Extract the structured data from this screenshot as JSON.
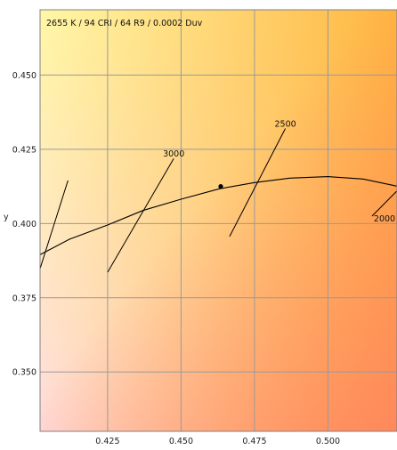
{
  "chart_data": {
    "type": "line",
    "title": "2655 K / 94 CRI / 64 R9 / 0.0002 Duv",
    "xlabel": "",
    "ylabel": "y",
    "xlim": [
      0.402,
      0.5235
    ],
    "ylim": [
      0.33,
      0.472
    ],
    "grid": true,
    "x_ticks": [
      "0.425",
      "0.450",
      "0.475",
      "0.500"
    ],
    "y_ticks": [
      "0.450",
      "0.425",
      "0.400",
      "0.375",
      "0.350"
    ],
    "colors": {
      "bg_top_right": "#ffb23a",
      "bg_top_left": "#fff7a6",
      "bg_bottom_left": "#ffdcdc",
      "bg_bottom_right": "#ff8060",
      "grid": "#9a9a9a",
      "curve": "#000000"
    },
    "planckian_locus": {
      "x": [
        0.402,
        0.412,
        0.425,
        0.437,
        0.45,
        0.463,
        0.475,
        0.487,
        0.5,
        0.512,
        0.5235
      ],
      "y": [
        0.3895,
        0.3947,
        0.3995,
        0.4044,
        0.4082,
        0.4117,
        0.4138,
        0.4153,
        0.4158,
        0.415,
        0.4126
      ]
    },
    "isotherms": [
      {
        "label": "3000",
        "x1": 0.425,
        "y1": 0.3836,
        "x2": 0.4475,
        "y2": 0.4219
      },
      {
        "label": "2500",
        "x1": 0.4665,
        "y1": 0.3956,
        "x2": 0.4855,
        "y2": 0.432
      },
      {
        "label": "2000",
        "x1": 0.515,
        "y1": 0.4025,
        "x2": 0.5235,
        "y2": 0.411
      },
      {
        "label": "",
        "x1": 0.402,
        "y1": 0.3848,
        "x2": 0.4115,
        "y2": 0.4145
      }
    ],
    "point": {
      "x": 0.4635,
      "y": 0.4125
    }
  }
}
